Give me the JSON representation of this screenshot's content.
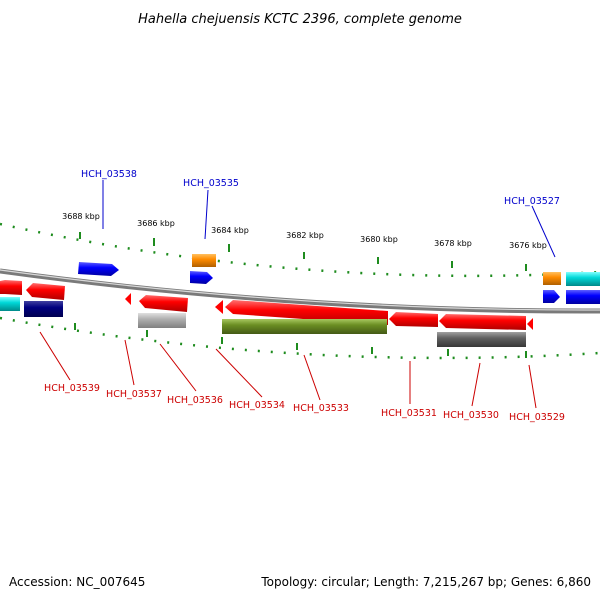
{
  "title": "Hahella chejuensis KCTC 2396, complete genome",
  "footer": {
    "accession": "Accession: NC_007645",
    "stats": "Topology: circular; Length: 7,215,267 bp; Genes: 6,860"
  },
  "colors": {
    "red": "#ff0000",
    "blue": "#0000ff",
    "navy": "#000080",
    "cyan": "#00cccc",
    "orange": "#ff8c00",
    "olive": "#6b8e23",
    "gray": "#a9a9a9",
    "darkgray": "#606060",
    "tick": "#1e8c1e",
    "backbone": "#999999",
    "label_top": "#0000cc",
    "label_bottom": "#cc0000"
  },
  "scale_labels": [
    "3688 kbp",
    "3686 kbp",
    "3684 kbp",
    "3682 kbp",
    "3680 kbp",
    "3678 kbp",
    "3676 kbp"
  ],
  "gene_labels_top": [
    "HCH_03538",
    "HCH_03535",
    "HCH_03527"
  ],
  "gene_labels_bottom": [
    "HCH_03539",
    "HCH_03537",
    "HCH_03536",
    "HCH_03534",
    "HCH_03533",
    "HCH_03531",
    "HCH_03530",
    "HCH_03529"
  ]
}
